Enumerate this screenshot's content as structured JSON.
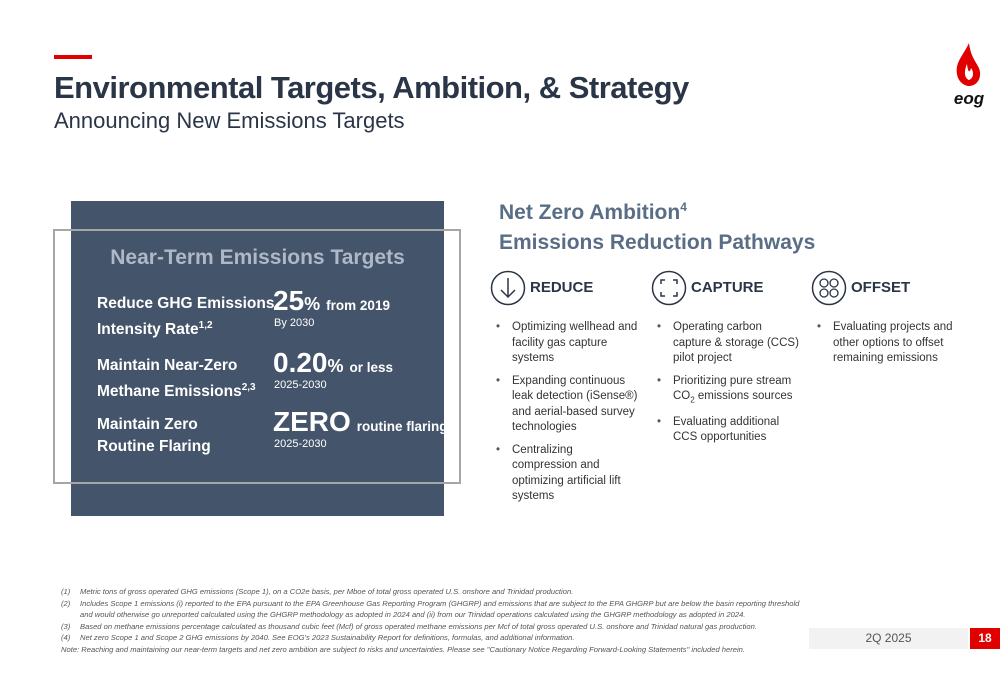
{
  "header": {
    "title": "Environmental Targets, Ambition, & Strategy",
    "subtitle": "Announcing New Emissions Targets",
    "logo": "eog"
  },
  "targets": {
    "heading": "Near-Term Emissions Targets",
    "items": [
      {
        "label_lines": [
          "Reduce GHG Emissions",
          "Intensity Rate"
        ],
        "sup": "1,2",
        "big": "25",
        "unit": "%",
        "qualifier": "from 2019",
        "period": "By 2030"
      },
      {
        "label_lines": [
          "Maintain Near-Zero",
          "Methane Emissions"
        ],
        "sup": "2,3",
        "big": "0.20",
        "unit": "%",
        "qualifier": "or less",
        "period": "2025-2030"
      },
      {
        "label_lines": [
          "Maintain Zero",
          "Routine Flaring"
        ],
        "big": "ZERO",
        "qualifier": "routine flaring",
        "period": "2025-2030"
      }
    ]
  },
  "ambition": {
    "title": "Net Zero Ambition",
    "sup": "4",
    "subtitle": "Emissions Reduction Pathways",
    "columns": [
      {
        "heading": "REDUCE",
        "bullets": [
          "Optimizing wellhead and facility gas capture systems",
          "Expanding continuous leak detection (iSense®) and aerial-based survey technologies",
          "Centralizing compression and optimizing artificial lift systems"
        ]
      },
      {
        "heading": "CAPTURE",
        "bullets": [
          "Operating carbon capture & storage (CCS) pilot project",
          {
            "before": "Prioritizing pure stream CO",
            "sub": "2",
            "after": " emissions sources"
          },
          "Evaluating additional CCS opportunities"
        ]
      },
      {
        "heading": "OFFSET",
        "bullets": [
          "Evaluating projects and other options to offset remaining emissions"
        ]
      }
    ]
  },
  "footnotes": [
    {
      "marker": "(1)",
      "text": "Metric tons of gross operated GHG emissions (Scope 1), on a CO2e basis, per Mboe of total gross operated U.S. onshore and Trinidad production."
    },
    {
      "marker": "(2)",
      "text": "Includes Scope 1 emissions (i) reported to the EPA pursuant to the EPA Greenhouse Gas Reporting Program (GHGRP) and emissions that are subject to the EPA GHGRP but are below the basin reporting threshold and would otherwise go unreported calculated using the GHGRP methodology as adopted in 2024 and (ii) from our Trinidad operations calculated using the GHGRP methodology as adopted in 2024."
    },
    {
      "marker": "(3)",
      "text": "Based on methane emissions percentage calculated as thousand cubic feet (Mcf) of gross operated methane emissions per Mcf of total gross operated U.S. onshore and Trinidad natural gas production."
    },
    {
      "marker": "(4)",
      "text": "Net zero Scope 1 and Scope 2 GHG emissions by 2040. See EOG's 2023 Sustainability Report for definitions, formulas, and additional information."
    }
  ],
  "note": "Note: Reaching and maintaining our near-term targets and net zero ambition are subject to risks and uncertainties. Please see \"Cautionary Notice Regarding Forward-Looking Statements\" included herein.",
  "footer": {
    "date": "2Q 2025",
    "page": "18"
  }
}
